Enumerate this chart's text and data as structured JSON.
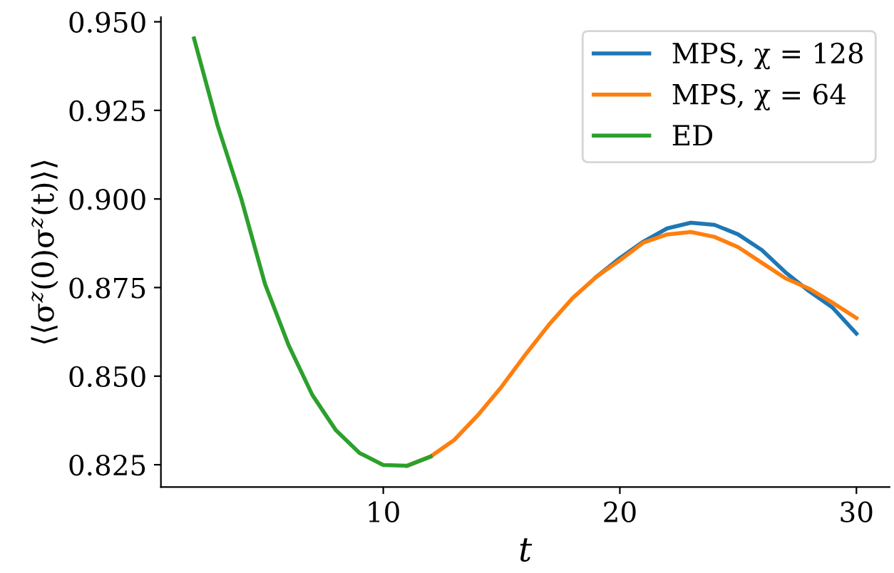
{
  "chart_data": {
    "type": "line",
    "xlabel": "t",
    "ylabel": "⟨⟨σ$^{z}$(0)σ$^{z}$(t)⟩⟩",
    "xlim": [
      0.6,
      31.4
    ],
    "xticks": [
      10,
      20,
      30
    ],
    "ylim": [
      0.8187,
      0.9513
    ],
    "yticks": [
      {
        "value": 0.825,
        "label": "0.825"
      },
      {
        "value": 0.85,
        "label": "0.850"
      },
      {
        "value": 0.875,
        "label": "0.875"
      },
      {
        "value": 0.9,
        "label": "0.900"
      },
      {
        "value": 0.925,
        "label": "0.925"
      },
      {
        "value": 0.95,
        "label": "0.950"
      }
    ],
    "grid": false,
    "legend": "top right",
    "line_style": "solid",
    "marker": "none",
    "series": [
      {
        "name": "MPS, χ = 128",
        "color": "#1f77b4",
        "x": [
          19,
          20,
          21,
          22,
          23,
          24,
          25,
          26,
          27,
          28,
          29,
          30
        ],
        "values": [
          0.878,
          0.8833,
          0.888,
          0.8917,
          0.8933,
          0.8927,
          0.89,
          0.8856,
          0.8793,
          0.874,
          0.8693,
          0.862
        ]
      },
      {
        "name": "MPS, χ = 64",
        "color": "#ff7f0e",
        "x": [
          11,
          12,
          13,
          14,
          15,
          16,
          17,
          18,
          19,
          20,
          21,
          22,
          23,
          24,
          25,
          26,
          27,
          28,
          29,
          30
        ],
        "values": [
          0.8247,
          0.8273,
          0.832,
          0.839,
          0.847,
          0.856,
          0.8645,
          0.872,
          0.878,
          0.8827,
          0.8877,
          0.89,
          0.8907,
          0.8893,
          0.8864,
          0.882,
          0.8776,
          0.8747,
          0.8707,
          0.8664
        ]
      },
      {
        "name": "ED",
        "color": "#2ca02c",
        "x": [
          2,
          3,
          4,
          5,
          6,
          7,
          8,
          9,
          10,
          11,
          12
        ],
        "values": [
          0.9453,
          0.9207,
          0.9,
          0.876,
          0.8587,
          0.8447,
          0.8347,
          0.8283,
          0.8249,
          0.8247,
          0.8273
        ]
      }
    ]
  }
}
